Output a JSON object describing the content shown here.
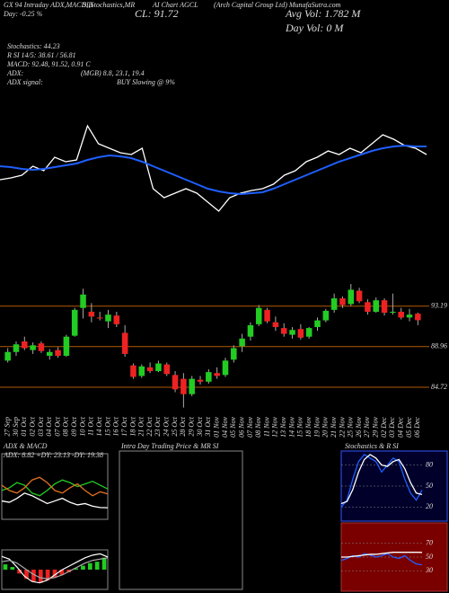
{
  "header": {
    "top_left": "GX 94 Intraday ADX,MACD,B",
    "top_mid": "SI,Stochastics,MR",
    "top_chart": "AI Chart AGCL",
    "top_right": "(Arch Capital Group Ltd) MunafaSutra.com",
    "day": "Day: -0.25 %",
    "close": "CL: 91.72",
    "avg_vol": "Avg Vol: 1.782 M",
    "day_vol": "Day Vol: 0 M",
    "stoch": "Stochastics: 44.23",
    "rsi": "R SI 14/5: 38.61 / 56.81",
    "macd": "MACD: 92.48, 91.52, 0.91 C",
    "adx": "ADX:",
    "adx_vals": "(MGB) 8.8, 23.1, 19.4",
    "adx_signal": "ADX signal:",
    "signal": "BUY Slowing @ 9%"
  },
  "chart_data": [
    {
      "type": "line",
      "ylim": [
        0,
        130
      ],
      "series": [
        {
          "name": "Price",
          "color": "#ffffff",
          "values": [
            50,
            52,
            55,
            65,
            60,
            75,
            70,
            72,
            110,
            90,
            85,
            80,
            78,
            85,
            40,
            30,
            35,
            40,
            35,
            25,
            15,
            30,
            35,
            38,
            40,
            45,
            55,
            60,
            70,
            75,
            82,
            78,
            85,
            80,
            90,
            100,
            95,
            88,
            85,
            78
          ]
        },
        {
          "name": "MA",
          "color": "#1f5fff",
          "values": [
            65,
            64,
            62,
            61,
            62,
            64,
            66,
            68,
            72,
            75,
            77,
            76,
            74,
            70,
            65,
            60,
            55,
            50,
            45,
            40,
            37,
            35,
            34,
            35,
            36,
            40,
            45,
            50,
            55,
            60,
            65,
            70,
            74,
            78,
            82,
            85,
            87,
            88,
            87,
            87
          ]
        }
      ]
    },
    {
      "type": "candlestick",
      "ylim": [
        82,
        95.6
      ],
      "yticks": [
        93.19,
        88.96,
        84.72
      ],
      "up_color": "#22cc22",
      "down_color": "#ee2222",
      "level_color": "#b35a00",
      "categories": [
        "27 Sep",
        "30 Sep",
        "01 Oct",
        "02 Oct",
        "03 Oct",
        "04 Oct",
        "07 Oct",
        "08 Oct",
        "09 Oct",
        "10 Oct",
        "11 Oct",
        "14 Oct",
        "15 Oct",
        "16 Oct",
        "17 Oct",
        "18 Oct",
        "21 Oct",
        "22 Oct",
        "23 Oct",
        "24 Oct",
        "25 Oct",
        "28 Oct",
        "29 Oct",
        "30 Oct",
        "31 Oct",
        "01 Nov",
        "04 Nov",
        "05 Nov",
        "06 Nov",
        "07 Nov",
        "08 Nov",
        "11 Nov",
        "12 Nov",
        "13 Nov",
        "14 Nov",
        "15 Nov",
        "18 Nov",
        "19 Nov",
        "20 Nov",
        "21 Nov",
        "22 Nov",
        "25 Nov",
        "26 Nov",
        "27 Nov",
        "29 Nov",
        "02 Dec",
        "03 Dec",
        "04 Dec",
        "05 Dec",
        "06 Dec"
      ],
      "open": [
        87.5,
        88.4,
        89.5,
        88.6,
        89.3,
        88.0,
        88.6,
        88.0,
        90.1,
        93.0,
        92.6,
        92.0,
        91.6,
        92.2,
        90.4,
        87.0,
        85.9,
        86.8,
        86.4,
        87.1,
        86.0,
        85.6,
        84.0,
        85.5,
        85.3,
        86.2,
        86.0,
        87.6,
        89.0,
        90.0,
        91.3,
        92.8,
        91.5,
        90.9,
        90.2,
        90.8,
        90.0,
        91.0,
        91.7,
        92.8,
        94.0,
        93.4,
        94.8,
        93.6,
        92.6,
        93.8,
        92.5,
        92.6,
        92.0,
        92.4
      ],
      "high": [
        88.8,
        89.5,
        90.0,
        89.4,
        89.5,
        88.7,
        88.9,
        90.2,
        93.0,
        95.0,
        93.5,
        92.6,
        92.8,
        92.6,
        91.2,
        87.2,
        87.1,
        87.3,
        87.5,
        87.3,
        86.4,
        86.2,
        85.9,
        85.9,
        86.6,
        86.8,
        87.8,
        89.1,
        90.3,
        91.5,
        93.3,
        93.0,
        92.1,
        91.4,
        91.0,
        91.3,
        91.0,
        92.0,
        92.9,
        94.5,
        94.2,
        95.5,
        95.1,
        93.9,
        94.1,
        94.0,
        94.5,
        93.0,
        92.9,
        92.5
      ],
      "low": [
        87.3,
        88.0,
        88.6,
        88.2,
        88.3,
        87.6,
        87.8,
        87.9,
        90.0,
        91.9,
        91.5,
        91.7,
        90.9,
        91.0,
        87.9,
        85.6,
        85.7,
        86.2,
        86.3,
        85.9,
        84.2,
        82.6,
        83.8,
        85.0,
        85.1,
        85.6,
        85.8,
        87.3,
        88.4,
        89.6,
        91.1,
        91.4,
        90.6,
        90.0,
        89.8,
        89.7,
        89.8,
        90.6,
        91.5,
        92.5,
        93.0,
        93.2,
        93.5,
        92.3,
        92.5,
        92.2,
        92.3,
        91.8,
        91.6,
        91.2
      ],
      "close": [
        88.4,
        89.2,
        88.8,
        89.1,
        88.5,
        88.4,
        88.0,
        90.0,
        92.8,
        94.4,
        92.1,
        91.9,
        92.3,
        91.3,
        88.2,
        85.8,
        86.9,
        86.4,
        87.2,
        86.1,
        84.5,
        84.0,
        85.6,
        85.3,
        86.3,
        85.9,
        87.5,
        88.8,
        89.8,
        91.2,
        93.0,
        91.6,
        91.0,
        90.3,
        90.7,
        89.9,
        90.9,
        91.7,
        92.7,
        94.0,
        93.3,
        94.9,
        93.7,
        92.6,
        93.8,
        92.5,
        92.6,
        92.0,
        92.3,
        91.72
      ]
    },
    {
      "type": "line",
      "title": "ADX & MACD",
      "subtitle": "ADX: 8.82 +DY: 23.13 -DY: 19.38",
      "ylim": [
        0,
        50
      ],
      "series": [
        {
          "name": "+DY",
          "color": "#22cc22",
          "values": [
            22,
            24,
            28,
            26,
            20,
            18,
            22,
            27,
            30,
            28,
            25,
            27,
            29,
            26,
            23.13
          ]
        },
        {
          "name": "-DY",
          "color": "#e07020",
          "values": [
            26,
            22,
            20,
            24,
            30,
            32,
            28,
            22,
            20,
            24,
            27,
            22,
            18,
            21,
            19.38
          ]
        },
        {
          "name": "ADX",
          "color": "#ffffff",
          "values": [
            14,
            13,
            16,
            20,
            18,
            15,
            12,
            14,
            16,
            13,
            11,
            12,
            10,
            9,
            8.82
          ]
        }
      ]
    },
    {
      "type": "bar",
      "ylim": [
        -1.5,
        1.5
      ],
      "pos_color": "#22cc22",
      "neg_color": "#ee2222",
      "values": [
        0.4,
        0.2,
        -0.3,
        -0.7,
        -0.9,
        -1.0,
        -0.8,
        -0.6,
        -0.4,
        -0.2,
        0.1,
        0.3,
        0.5,
        0.6,
        0.91
      ],
      "series": [
        {
          "name": "MACD",
          "color": "#ffffff",
          "values": [
            1.0,
            0.8,
            0.2,
            -0.5,
            -0.9,
            -1.0,
            -0.8,
            -0.4,
            0.0,
            0.3,
            0.6,
            0.9,
            1.1,
            1.2,
            0.96
          ]
        },
        {
          "name": "Signal",
          "color": "#aaaaaa",
          "values": [
            0.6,
            0.7,
            0.5,
            0.1,
            -0.3,
            -0.6,
            -0.7,
            -0.6,
            -0.4,
            -0.1,
            0.2,
            0.5,
            0.7,
            0.8,
            0.9
          ]
        }
      ]
    },
    {
      "type": "line",
      "title": "Intra Day Trading Price & MR SI",
      "series": []
    },
    {
      "type": "line",
      "title": "Stochastics & R SI",
      "ylim": [
        0,
        100
      ],
      "yticks": [
        80,
        50,
        20
      ],
      "series": [
        {
          "name": "%K",
          "color": "#1f5fff",
          "values": [
            20,
            30,
            60,
            85,
            95,
            90,
            85,
            70,
            80,
            90,
            85,
            60,
            40,
            30,
            44.23
          ]
        },
        {
          "name": "%D",
          "color": "#ffffff",
          "values": [
            25,
            28,
            45,
            70,
            88,
            95,
            90,
            80,
            78,
            85,
            88,
            75,
            55,
            40,
            38
          ]
        }
      ]
    },
    {
      "type": "line",
      "ylim": [
        0,
        100
      ],
      "yticks": [
        70,
        50,
        30
      ],
      "series": [
        {
          "name": "RSI",
          "color": "#1f5fff",
          "values": [
            45,
            48,
            52,
            50,
            55,
            53,
            50,
            52,
            55,
            50,
            48,
            52,
            45,
            40,
            38.61
          ]
        },
        {
          "name": "MRSI",
          "color": "#ffffff",
          "values": [
            50,
            50,
            51,
            52,
            53,
            54,
            54,
            55,
            56,
            57,
            57,
            57,
            57,
            57,
            56.81
          ]
        }
      ]
    }
  ]
}
